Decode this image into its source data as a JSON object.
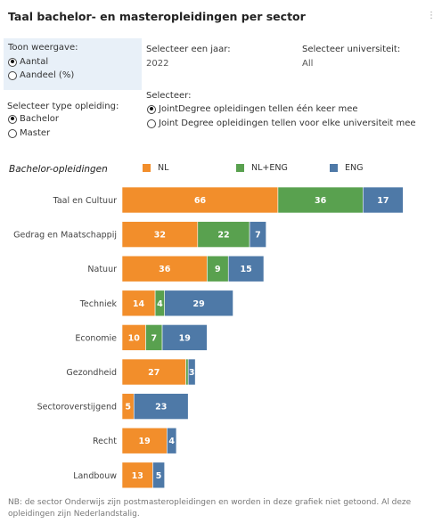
{
  "title": "Taal bachelor- en masteropleidingen per sector",
  "controls": {
    "display": {
      "label": "Toon weergave:",
      "options": [
        "Aantal",
        "Aandeel (%)"
      ],
      "selected": 0
    },
    "year": {
      "label": "Selecteer een jaar:",
      "value": "2022"
    },
    "university": {
      "label": "Selecteer universiteit:",
      "value": "All"
    },
    "program_type": {
      "label": "Selecteer type opleiding:",
      "options": [
        "Bachelor",
        "Master"
      ],
      "selected": 0
    },
    "joint_degree": {
      "label": "Selecteer:",
      "options": [
        "JointDegree opleidingen tellen één keer mee",
        "Joint Degree opleidingen tellen voor elke universiteit mee"
      ],
      "selected": 0
    }
  },
  "chart_data": {
    "type": "bar",
    "orientation": "horizontal",
    "stacked": true,
    "subtitle": "Bachelor-opleidingen",
    "legend_position": "top",
    "categories": [
      "Taal en Cultuur",
      "Gedrag en Maatschappij",
      "Natuur",
      "Techniek",
      "Economie",
      "Gezondheid",
      "Sectoroverstijgend",
      "Recht",
      "Landbouw"
    ],
    "series": [
      {
        "name": "NL",
        "color": "#f28e2b",
        "values": [
          66,
          32,
          36,
          14,
          10,
          27,
          5,
          19,
          13
        ]
      },
      {
        "name": "NL+ENG",
        "color": "#59a14f",
        "values": [
          36,
          22,
          9,
          4,
          7,
          1,
          0,
          0,
          0
        ]
      },
      {
        "name": "ENG",
        "color": "#4e79a7",
        "values": [
          17,
          7,
          15,
          29,
          19,
          3,
          23,
          4,
          5
        ]
      }
    ],
    "grid": false
  },
  "footnote": "NB: de sector Onderwijs zijn postmasteropleidingen en worden in deze grafiek niet getoond. Al deze opleidingen zijn Nederlandstalig."
}
